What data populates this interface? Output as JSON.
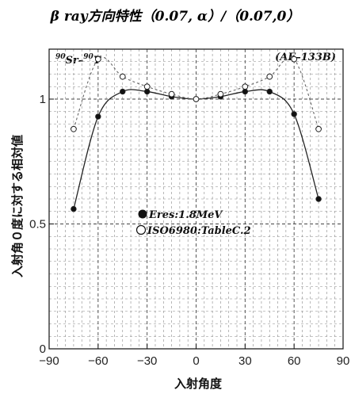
{
  "chart_data": {
    "type": "line",
    "title": "β ray方向特性（0.07, α）/（0.07,0）",
    "source_label": "90Sr–90Y",
    "source_parts": {
      "sup1": "90",
      "el1": "Sr",
      "dash": "–",
      "sup2": "90",
      "el2": "Y"
    },
    "model_label": "(AE–133B)",
    "xlabel": "入射角度",
    "ylabel": "入射角０度に対する相対値",
    "xlim": [
      -90,
      90
    ],
    "ylim": [
      0,
      1.2
    ],
    "xticks": [
      -90,
      -60,
      -30,
      0,
      30,
      60,
      90
    ],
    "yticks": [
      0,
      0.5,
      1
    ],
    "grid": true,
    "legend_position": "center-left",
    "series": [
      {
        "name": "Eres:1.8MeV",
        "marker": "filled-circle",
        "line_style": "solid",
        "x": [
          -75,
          -60,
          -45,
          -30,
          -15,
          0,
          15,
          30,
          45,
          60,
          75
        ],
        "y": [
          0.56,
          0.93,
          1.03,
          1.03,
          1.01,
          1.0,
          1.01,
          1.03,
          1.03,
          0.94,
          0.6
        ]
      },
      {
        "name": "ISO6980:TableC.2",
        "marker": "open-circle",
        "line_style": "dashed",
        "x": [
          -75,
          -60,
          -45,
          -30,
          -15,
          0,
          15,
          30,
          45,
          60,
          75
        ],
        "y": [
          0.88,
          1.16,
          1.09,
          1.05,
          1.02,
          1.0,
          1.02,
          1.05,
          1.09,
          1.16,
          0.88
        ]
      }
    ]
  }
}
